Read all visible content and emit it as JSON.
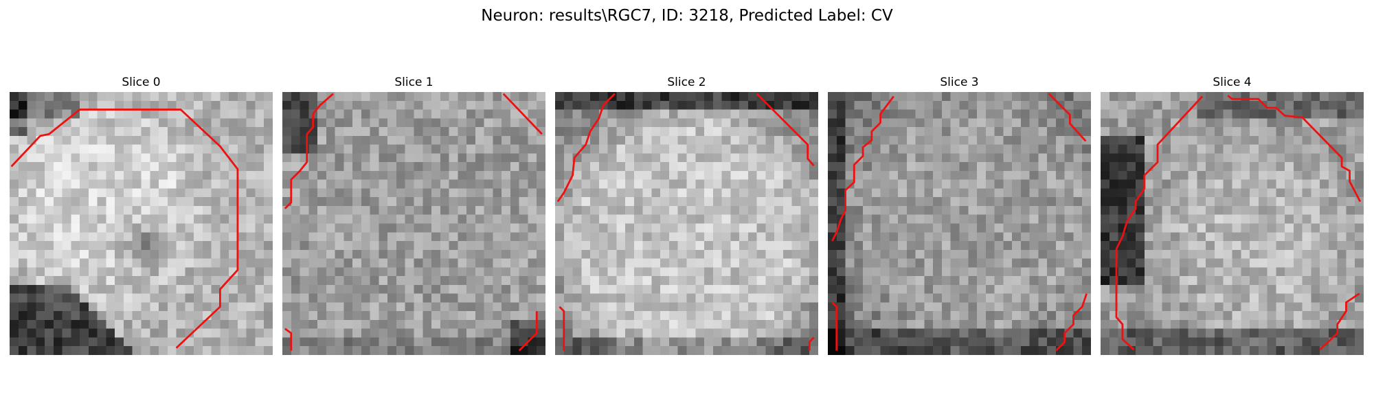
{
  "figure": {
    "title": "Neuron: results\\RGC7, ID: 3218, Predicted Label: CV",
    "contour_color": "#ee1111"
  },
  "slices": [
    {
      "title": "Slice 0"
    },
    {
      "title": "Slice 1"
    },
    {
      "title": "Slice 2"
    },
    {
      "title": "Slice 3"
    },
    {
      "title": "Slice 4"
    }
  ]
}
